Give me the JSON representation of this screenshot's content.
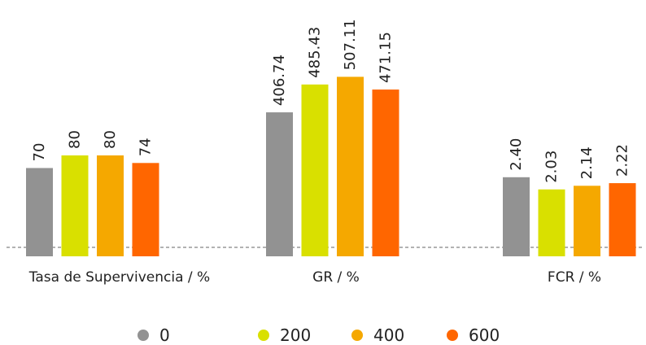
{
  "chart_data": {
    "type": "bar",
    "groups": [
      {
        "label": "Tasa de Supervivencia / %",
        "values": [
          70,
          80,
          80,
          74
        ],
        "value_labels": [
          "70",
          "80",
          "80",
          "74"
        ]
      },
      {
        "label": "GR / %",
        "values": [
          406.74,
          485.43,
          507.11,
          471.15
        ],
        "value_labels": [
          "406.74",
          "485.43",
          "507.11",
          "471.15"
        ]
      },
      {
        "label": "FCR / %",
        "values": [
          2.4,
          2.03,
          2.14,
          2.22
        ],
        "value_labels": [
          "2.40",
          "2.03",
          "2.14",
          "2.22"
        ]
      }
    ],
    "series": [
      {
        "name": "0",
        "color": "#929292"
      },
      {
        "name": "200",
        "color": "#d9e000"
      },
      {
        "name": "400",
        "color": "#f5a800"
      },
      {
        "name": "600",
        "color": "#ff6600"
      }
    ],
    "baseline": "dashed",
    "legend_position": "bottom"
  }
}
